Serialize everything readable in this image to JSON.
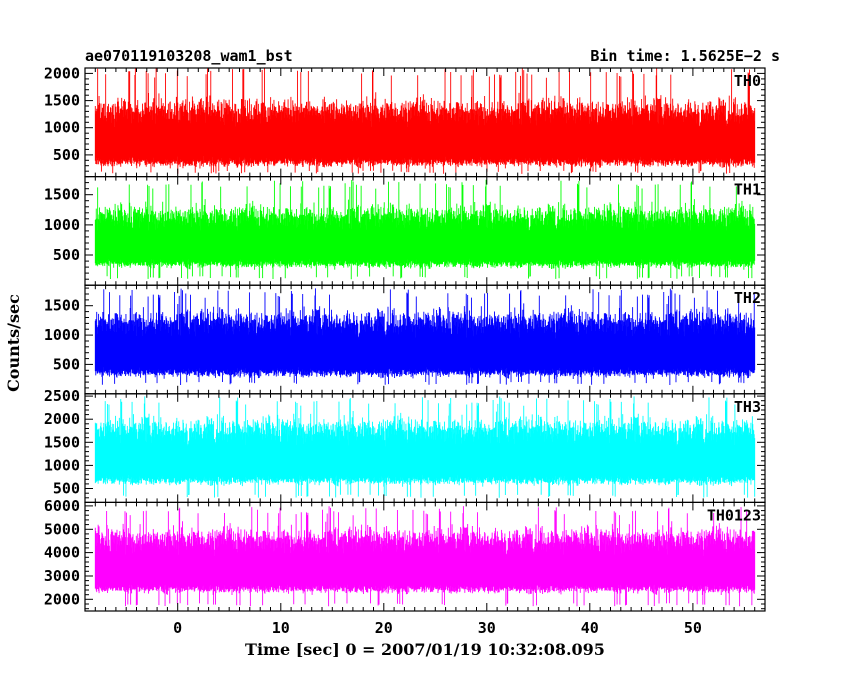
{
  "header": {
    "left": "ae070119103208_wam1_bst",
    "right": "Bin time: 1.5625E−2 s"
  },
  "chart_data": {
    "type": "line",
    "xlabel": "Time [sec] 0 = 2007/01/19 10:32:08.095",
    "ylabel": "Counts/sec",
    "xlim": [
      -9,
      57
    ],
    "x_ticks": [
      0,
      10,
      20,
      30,
      40,
      50
    ],
    "x_tick_labels": [
      "0",
      "10",
      "20",
      "30",
      "40",
      "50"
    ],
    "x_data_range": [
      -8,
      56
    ],
    "bin_time": 0.015625,
    "panels": [
      {
        "name": "TH0",
        "color": "#ff0000",
        "ylim": [
          100,
          2100
        ],
        "yticks": [
          500,
          1000,
          1500,
          2000
        ],
        "series_approx": {
          "baseline": 750,
          "typical_range": [
            300,
            1500
          ],
          "max": 2100,
          "min": 150
        }
      },
      {
        "name": "TH1",
        "color": "#00ff00",
        "ylim": [
          0,
          1800
        ],
        "yticks": [
          500,
          1000,
          1500
        ],
        "series_approx": {
          "baseline": 700,
          "typical_range": [
            300,
            1300
          ],
          "max": 1750,
          "min": 100
        }
      },
      {
        "name": "TH2",
        "color": "#0000ff",
        "ylim": [
          0,
          1850
        ],
        "yticks": [
          500,
          1000,
          1500
        ],
        "series_approx": {
          "baseline": 700,
          "typical_range": [
            300,
            1400
          ],
          "max": 1800,
          "min": 150
        }
      },
      {
        "name": "TH3",
        "color": "#00ffff",
        "ylim": [
          200,
          2550
        ],
        "yticks": [
          500,
          1000,
          1500,
          2000,
          2500
        ],
        "series_approx": {
          "baseline": 1100,
          "typical_range": [
            600,
            2000
          ],
          "max": 2500,
          "min": 300
        }
      },
      {
        "name": "TH0123",
        "color": "#ff00ff",
        "ylim": [
          1500,
          6150
        ],
        "yticks": [
          2000,
          3000,
          4000,
          5000,
          6000
        ],
        "series_approx": {
          "baseline": 3100,
          "typical_range": [
            2300,
            5000
          ],
          "max": 6000,
          "min": 1700
        }
      }
    ]
  }
}
